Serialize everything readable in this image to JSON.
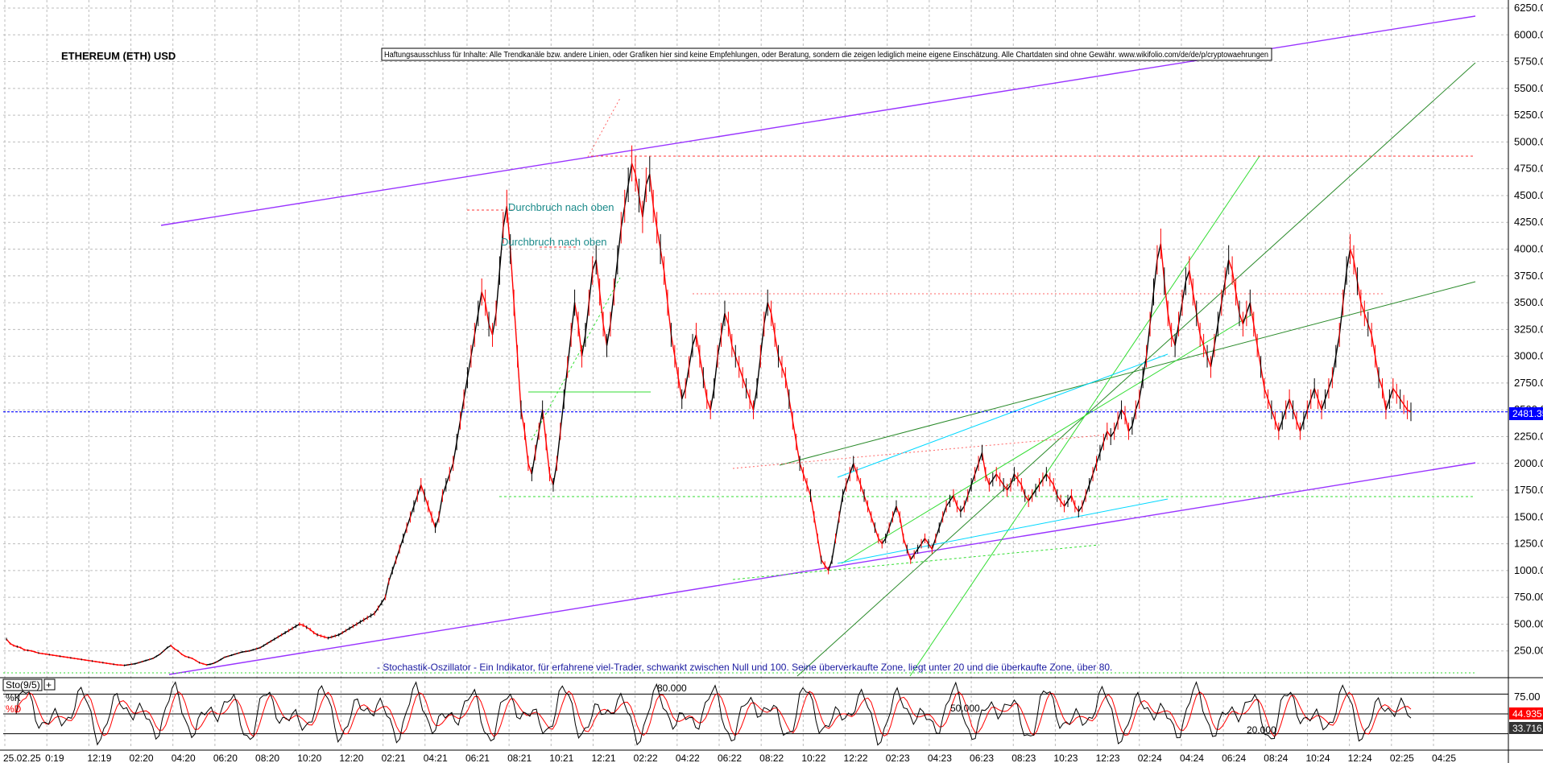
{
  "chart_data": [
    {
      "type": "line",
      "title": "ETHEREUM (ETH) USD",
      "disclaimer": "Haftungsausschluss für Inhalte: Alle Trendkanäle bzw. andere Linien, oder Grafiken hier sind keine Empfehlungen, oder Beratung, sondern die zeigen lediglich meine eigene Einschätzung. Alle Chartdaten sind ohne Gewähr. www.wikifolio.com/de/de/p/cryptowaehrungen",
      "last_price_label": "2481.35",
      "last_price": 2481.35,
      "ylim": [
        0,
        6250
      ],
      "y_ticks": [
        "250.00",
        "500.00",
        "750.00",
        "1000.00",
        "1250.00",
        "1500.00",
        "1750.00",
        "2000.00",
        "2250.00",
        "2500.00",
        "2750.00",
        "3000.00",
        "3250.00",
        "3500.00",
        "3750.00",
        "4000.00",
        "4250.00",
        "4500.00",
        "4750.00",
        "5000.00",
        "5250.00",
        "5500.00",
        "5750.00",
        "6000.00",
        "6250.00"
      ],
      "x_ticks": [
        "25.02.25",
        "0:19",
        "12:19",
        "02:20",
        "04:20",
        "06:20",
        "08:20",
        "10:20",
        "12:20",
        "02:21",
        "04:21",
        "06:21",
        "08:21",
        "10:21",
        "12:21",
        "02:22",
        "04:22",
        "06:22",
        "08:22",
        "10:22",
        "12:22",
        "02:23",
        "04:23",
        "06:23",
        "08:23",
        "10:23",
        "12:23",
        "02:24",
        "04:24",
        "06:24",
        "08:24",
        "10:24",
        "12:24",
        "02:25",
        "04:25"
      ],
      "series": [
        {
          "values": [
            360,
            320,
            300,
            290,
            280,
            260,
            255,
            250,
            240,
            230,
            225,
            220,
            215,
            210,
            205,
            200,
            195,
            190,
            185,
            180,
            175,
            170,
            165,
            160,
            155,
            150,
            145,
            140,
            135,
            130,
            125,
            120,
            118,
            115,
            120,
            125,
            130,
            140,
            150,
            160,
            170,
            180,
            200,
            220,
            250,
            280,
            300,
            270,
            250,
            220,
            200,
            190,
            180,
            160,
            140,
            130,
            120,
            125,
            135,
            150,
            170,
            190,
            200,
            210,
            220,
            230,
            240,
            245,
            250,
            260,
            270,
            280,
            300,
            320,
            340,
            360,
            380,
            400,
            420,
            440,
            460,
            480,
            500,
            490,
            470,
            450,
            420,
            400,
            390,
            380,
            370,
            380,
            390,
            400,
            420,
            440,
            460,
            480,
            500,
            520,
            540,
            560,
            580,
            600,
            650,
            700,
            750,
            900,
            1000,
            1100,
            1200,
            1300,
            1400,
            1500,
            1600,
            1700,
            1800,
            1700,
            1600,
            1500,
            1400,
            1500,
            1700,
            1800,
            1900,
            2000,
            2200,
            2400,
            2600,
            2800,
            3000,
            3200,
            3400,
            3600,
            3500,
            3300,
            3200,
            3400,
            3800,
            4200,
            4400,
            4000,
            3500,
            3000,
            2500,
            2300,
            2000,
            1900,
            2100,
            2300,
            2500,
            2200,
            1900,
            1800,
            2000,
            2300,
            2600,
            2900,
            3200,
            3500,
            3300,
            3000,
            3200,
            3500,
            3800,
            3900,
            3600,
            3300,
            3100,
            3300,
            3600,
            3900,
            4200,
            4400,
            4600,
            4800,
            4700,
            4500,
            4300,
            4600,
            4700,
            4400,
            4200,
            4000,
            3800,
            3500,
            3200,
            3000,
            2800,
            2600,
            2700,
            2900,
            3100,
            3200,
            3000,
            2800,
            2600,
            2500,
            2700,
            3000,
            3200,
            3400,
            3300,
            3100,
            3000,
            2900,
            2800,
            2700,
            2600,
            2500,
            2700,
            3000,
            3300,
            3500,
            3400,
            3200,
            3000,
            2900,
            2800,
            2600,
            2400,
            2200,
            2000,
            1900,
            1800,
            1700,
            1500,
            1300,
            1100,
            1050,
            1000,
            1100,
            1300,
            1500,
            1700,
            1800,
            1900,
            2000,
            1900,
            1800,
            1700,
            1600,
            1500,
            1400,
            1300,
            1250,
            1300,
            1400,
            1500,
            1600,
            1500,
            1300,
            1200,
            1100,
            1150,
            1200,
            1250,
            1300,
            1250,
            1200,
            1300,
            1400,
            1500,
            1600,
            1650,
            1700,
            1600,
            1550,
            1600,
            1700,
            1800,
            1900,
            2000,
            2100,
            1900,
            1800,
            1850,
            1900,
            1850,
            1800,
            1750,
            1800,
            1900,
            1850,
            1800,
            1700,
            1650,
            1700,
            1750,
            1800,
            1850,
            1900,
            1850,
            1800,
            1700,
            1650,
            1600,
            1650,
            1700,
            1600,
            1550,
            1600,
            1700,
            1800,
            1900,
            2000,
            2100,
            2200,
            2300,
            2250,
            2300,
            2400,
            2500,
            2450,
            2300,
            2350,
            2500,
            2600,
            2800,
            3000,
            3300,
            3600,
            3900,
            4050,
            3700,
            3400,
            3200,
            3100,
            3300,
            3500,
            3700,
            3800,
            3600,
            3400,
            3200,
            3100,
            3000,
            2900,
            3100,
            3300,
            3500,
            3700,
            3900,
            3800,
            3600,
            3400,
            3300,
            3400,
            3500,
            3300,
            3100,
            2900,
            2700,
            2600,
            2500,
            2400,
            2300,
            2400,
            2500,
            2600,
            2500,
            2400,
            2300,
            2400,
            2500,
            2600,
            2700,
            2600,
            2500,
            2600,
            2700,
            2800,
            3000,
            3200,
            3500,
            3800,
            4000,
            3900,
            3700,
            3500,
            3400,
            3300,
            3200,
            3000,
            2800,
            2700,
            2500,
            2600,
            2700,
            2650,
            2600,
            2550,
            2500,
            2481
          ]
        }
      ],
      "annotations": [
        "Durchbruch nach oben",
        "Durchbruch nach oben"
      ],
      "stochastic_note": "- Stochastik-Oszillator - Ein Indikator, für erfahrene viel-Trader, schwankt zwischen Null und 100. Seine überverkaufte Zone, liegt unter 20 und die überkaufte Zone, über 80."
    },
    {
      "type": "line",
      "title": "Sto(9/5)",
      "ylim": [
        0,
        100
      ],
      "y_ticks": [
        "75.00"
      ],
      "levels": [
        "80.000",
        "50.000",
        "20.000"
      ],
      "series": [
        {
          "name": "%K",
          "last_label": "44.935"
        },
        {
          "name": "%D",
          "last_label": "33.716"
        }
      ]
    }
  ],
  "colors": {
    "price_up": "#000000",
    "price_down": "#ff0000",
    "channel": "#9933ff",
    "trend_dark_green": "#2a8a2a",
    "trend_light_green": "#33dd33",
    "cyan": "#00d8ff",
    "last_price_line": "#0000ff",
    "last_price_box": "#0000ff",
    "k_box": "#ff0000",
    "d_box": "#333333"
  }
}
